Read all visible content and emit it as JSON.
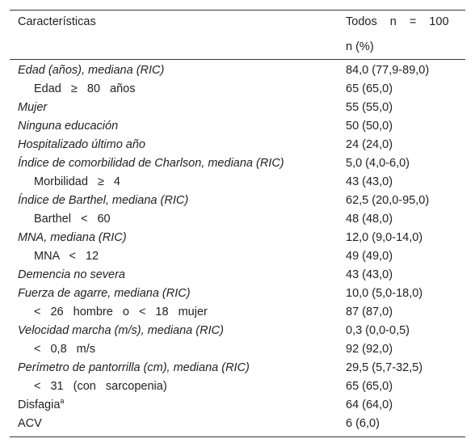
{
  "header": {
    "col1": "Características",
    "col2_line1": "Todos n = 100",
    "col2_line2": "n (%)"
  },
  "table": {
    "rows": [
      {
        "label": "Edad (años), mediana (RIC)",
        "value": "84,0 (77,9-89,0)",
        "style": "italic"
      },
      {
        "label": "Edad ≥ 80 años",
        "value": "65 (65,0)",
        "style": "indent"
      },
      {
        "label": "Mujer",
        "value": "55 (55,0)",
        "style": "italic"
      },
      {
        "label": "Ninguna educación",
        "value": "50 (50,0)",
        "style": "italic"
      },
      {
        "label": "Hospitalizado último año",
        "value": "24 (24,0)",
        "style": "italic"
      },
      {
        "label": "Índice de comorbilidad de Charlson, mediana (RIC)",
        "value": "5,0 (4,0-6,0)",
        "style": "italic"
      },
      {
        "label": "Morbilidad ≥ 4",
        "value": "43 (43,0)",
        "style": "indent"
      },
      {
        "label": "Índice de Barthel, mediana (RIC)",
        "value": "62,5 (20,0-95,0)",
        "style": "italic"
      },
      {
        "label": "Barthel < 60",
        "value": "48 (48,0)",
        "style": "indent"
      },
      {
        "label": "MNA, mediana (RIC)",
        "value": "12,0 (9,0-14,0)",
        "style": "italic"
      },
      {
        "label": "MNA < 12",
        "value": "49 (49,0)",
        "style": "indent"
      },
      {
        "label": "Demencia no severa",
        "value": "43 (43,0)",
        "style": "italic"
      },
      {
        "label": "Fuerza de agarre, mediana (RIC)",
        "value": "10,0 (5,0-18,0)",
        "style": "italic"
      },
      {
        "label": "< 26 hombre o < 18 mujer",
        "value": "87 (87,0)",
        "style": "indent"
      },
      {
        "label": "Velocidad marcha (m/s), mediana (RIC)",
        "value": "0,3 (0,0-0,5)",
        "style": "italic"
      },
      {
        "label": "< 0,8 m/s",
        "value": "92 (92,0)",
        "style": "indent"
      },
      {
        "label": "Perímetro de pantorrilla (cm), mediana (RIC)",
        "value": "29,5 (5,7-32,5)",
        "style": "italic"
      },
      {
        "label": "< 31 (con sarcopenia)",
        "value": "65 (65,0)",
        "style": "indent"
      },
      {
        "label": "Disfagia",
        "sup": "a",
        "value": "64 (64,0)",
        "style": "plain"
      },
      {
        "label": "ACV",
        "value": "6 (6,0)",
        "style": "plain"
      }
    ]
  }
}
